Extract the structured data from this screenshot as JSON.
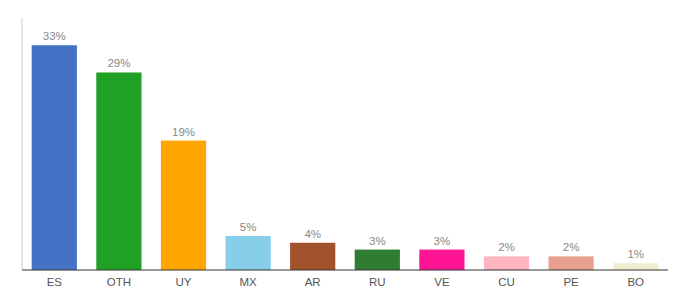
{
  "chart_data": {
    "type": "bar",
    "categories": [
      "ES",
      "OTH",
      "UY",
      "MX",
      "AR",
      "RU",
      "VE",
      "CU",
      "PE",
      "BO"
    ],
    "values": [
      33,
      29,
      19,
      5,
      4,
      3,
      3,
      2,
      2,
      1
    ],
    "value_labels": [
      "33%",
      "29%",
      "19%",
      "5%",
      "4%",
      "3%",
      "3%",
      "2%",
      "2%",
      "1%"
    ],
    "colors": [
      "#4472C4",
      "#21A026",
      "#FFA500",
      "#87CEEB",
      "#A0522D",
      "#2E7D32",
      "#FF1493",
      "#FFB6C1",
      "#E8A090",
      "#F0EED0"
    ],
    "ylim": [
      0,
      37
    ],
    "grid": false,
    "data_labels": true,
    "tick_labels": "x"
  }
}
